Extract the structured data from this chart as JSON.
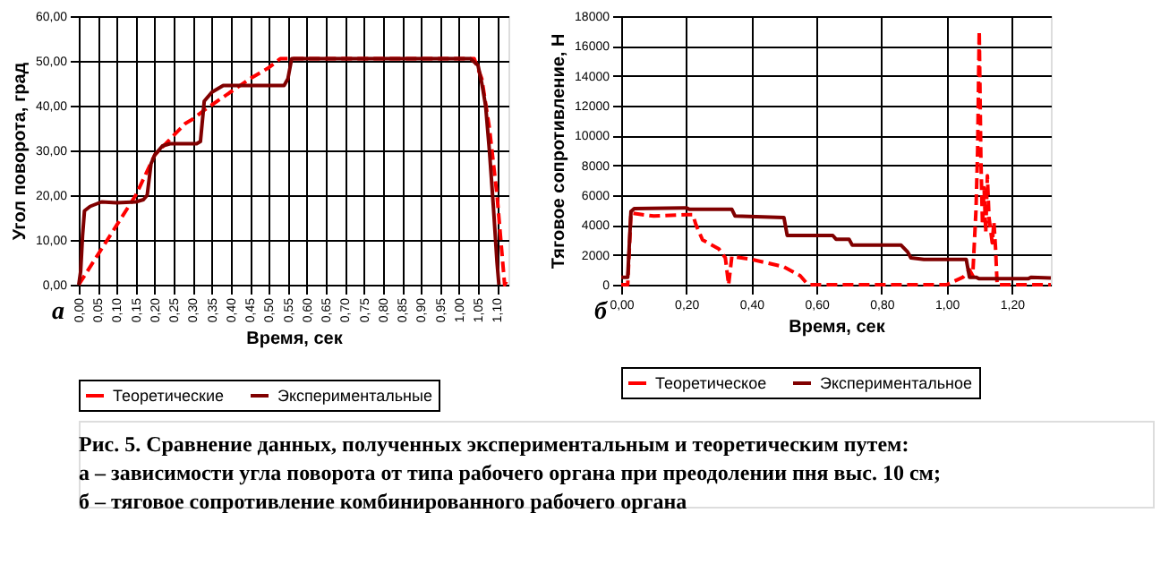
{
  "chart_data": [
    {
      "type": "line",
      "xlabel": "Время, сек",
      "ylabel": "Угол поворота, град",
      "legend": "bottom",
      "grid": true,
      "marker": "none",
      "xlim": [
        0,
        1.13
      ],
      "ylim": [
        0,
        60
      ],
      "xticks": [
        {
          "value": 0,
          "label": "0,00"
        },
        {
          "value": 0.05,
          "label": "0,05"
        },
        {
          "value": 0.1,
          "label": "0,10"
        },
        {
          "value": 0.15,
          "label": "0,15"
        },
        {
          "value": 0.2,
          "label": "0,20"
        },
        {
          "value": 0.25,
          "label": "0,25"
        },
        {
          "value": 0.3,
          "label": "0,30"
        },
        {
          "value": 0.35,
          "label": "0,35"
        },
        {
          "value": 0.4,
          "label": "0,40"
        },
        {
          "value": 0.45,
          "label": "0,45"
        },
        {
          "value": 0.5,
          "label": "0,50"
        },
        {
          "value": 0.55,
          "label": "0,55"
        },
        {
          "value": 0.6,
          "label": "0,60"
        },
        {
          "value": 0.65,
          "label": "0,65"
        },
        {
          "value": 0.7,
          "label": "0,70"
        },
        {
          "value": 0.75,
          "label": "0,75"
        },
        {
          "value": 0.8,
          "label": "0,80"
        },
        {
          "value": 0.85,
          "label": "0,85"
        },
        {
          "value": 0.9,
          "label": "0,90"
        },
        {
          "value": 0.95,
          "label": "0,95"
        },
        {
          "value": 1.0,
          "label": "1,00"
        },
        {
          "value": 1.05,
          "label": "1,05"
        },
        {
          "value": 1.1,
          "label": "1,10"
        }
      ],
      "yticks": [
        {
          "value": 0,
          "label": "0,00"
        },
        {
          "value": 10,
          "label": "10,00"
        },
        {
          "value": 20,
          "label": "20,00"
        },
        {
          "value": 30,
          "label": "30,00"
        },
        {
          "value": 40,
          "label": "40,00"
        },
        {
          "value": 50,
          "label": "50,00"
        },
        {
          "value": 60,
          "label": "60,00"
        }
      ],
      "annotations": [
        "а",
        "Рис. 5. Сравнение данных, полученных экспериментальным и теоретическим путем:",
        "а – зависимости угла поворота от типа рабочего органа при преодолении пня выс. 10 см;",
        "б – тяговое сопротивление комбинированного рабочего органа"
      ],
      "series": [
        {
          "name": "Теоретические",
          "color": "#ff0000",
          "line_style": "dashed",
          "x": [
            0,
            0.15,
            0.2,
            0.28,
            0.3,
            0.33,
            0.45,
            0.5,
            0.53,
            1.04,
            1.06,
            1.08,
            1.1,
            1.12,
            1.13
          ],
          "values": [
            0,
            20,
            29,
            36,
            37,
            39,
            46,
            48.5,
            50.5,
            50.5,
            46,
            35,
            20,
            0,
            1.5
          ]
        },
        {
          "name": "Экспериментальные",
          "color": "#800000",
          "line_style": "solid",
          "x": [
            0,
            0.005,
            0.01,
            0.015,
            0.03,
            0.06,
            0.1,
            0.15,
            0.17,
            0.18,
            0.19,
            0.2,
            0.22,
            0.24,
            0.31,
            0.32,
            0.33,
            0.35,
            0.38,
            0.54,
            0.55,
            0.56,
            1.03,
            1.05,
            1.06,
            1.07,
            1.08,
            1.09,
            1.1,
            1.105
          ],
          "values": [
            0,
            3,
            11,
            16.5,
            17.5,
            18.5,
            18.3,
            18.5,
            19,
            20,
            27,
            29,
            31,
            31.5,
            31.5,
            32,
            41,
            43,
            44.5,
            44.5,
            46,
            50.5,
            50.5,
            49,
            45,
            40,
            30,
            18,
            5,
            0
          ]
        }
      ]
    },
    {
      "type": "line",
      "xlabel": "Время, сек",
      "ylabel": "Тяговое сопротивление, Н",
      "legend": "bottom",
      "grid": true,
      "marker": "none",
      "xlim": [
        0,
        1.32
      ],
      "ylim": [
        0,
        18000
      ],
      "xticks": [
        {
          "value": 0,
          "label": "0,00"
        },
        {
          "value": 0.2,
          "label": "0,20"
        },
        {
          "value": 0.4,
          "label": "0,40"
        },
        {
          "value": 0.6,
          "label": "0,60"
        },
        {
          "value": 0.8,
          "label": "0,80"
        },
        {
          "value": 1.0,
          "label": "1,00"
        },
        {
          "value": 1.2,
          "label": "1,20"
        }
      ],
      "yticks": [
        0,
        2000,
        4000,
        6000,
        8000,
        10000,
        12000,
        14000,
        16000,
        18000
      ],
      "annotations": [
        "б"
      ],
      "series": [
        {
          "name": "Теоретическое",
          "color": "#ff0000",
          "line_style": "dashed",
          "x": [
            0,
            0.02,
            0.03,
            0.1,
            0.2,
            0.22,
            0.23,
            0.25,
            0.3,
            0.32,
            0.33,
            0.34,
            0.4,
            0.5,
            0.55,
            0.57,
            0.58,
            1.0,
            1.05,
            1.07,
            1.08,
            1.09,
            1.095,
            1.1,
            1.105,
            1.11,
            1.115,
            1.12,
            1.125,
            1.13,
            1.14,
            1.145,
            1.15,
            1.155,
            1.32
          ],
          "values": [
            0,
            0,
            4800,
            4600,
            4700,
            4700,
            4000,
            3000,
            2400,
            1800,
            0,
            1900,
            1700,
            1200,
            600,
            100,
            0,
            0,
            500,
            1000,
            600,
            5000,
            9000,
            17000,
            8500,
            4000,
            6500,
            3500,
            7300,
            4500,
            2800,
            4200,
            2500,
            0,
            0
          ]
        },
        {
          "name": "Экспериментальное",
          "color": "#800000",
          "line_style": "solid",
          "x": [
            0,
            0.02,
            0.03,
            0.04,
            0.2,
            0.21,
            0.34,
            0.35,
            0.5,
            0.51,
            0.65,
            0.66,
            0.7,
            0.71,
            0.86,
            0.88,
            0.89,
            0.93,
            1.06,
            1.07,
            1.09,
            1.1,
            1.25,
            1.26,
            1.32
          ],
          "values": [
            500,
            500,
            4900,
            5100,
            5150,
            5050,
            5050,
            4600,
            4500,
            3300,
            3300,
            3050,
            3050,
            2650,
            2650,
            2200,
            1800,
            1700,
            1700,
            500,
            500,
            400,
            400,
            500,
            450
          ]
        }
      ]
    }
  ]
}
